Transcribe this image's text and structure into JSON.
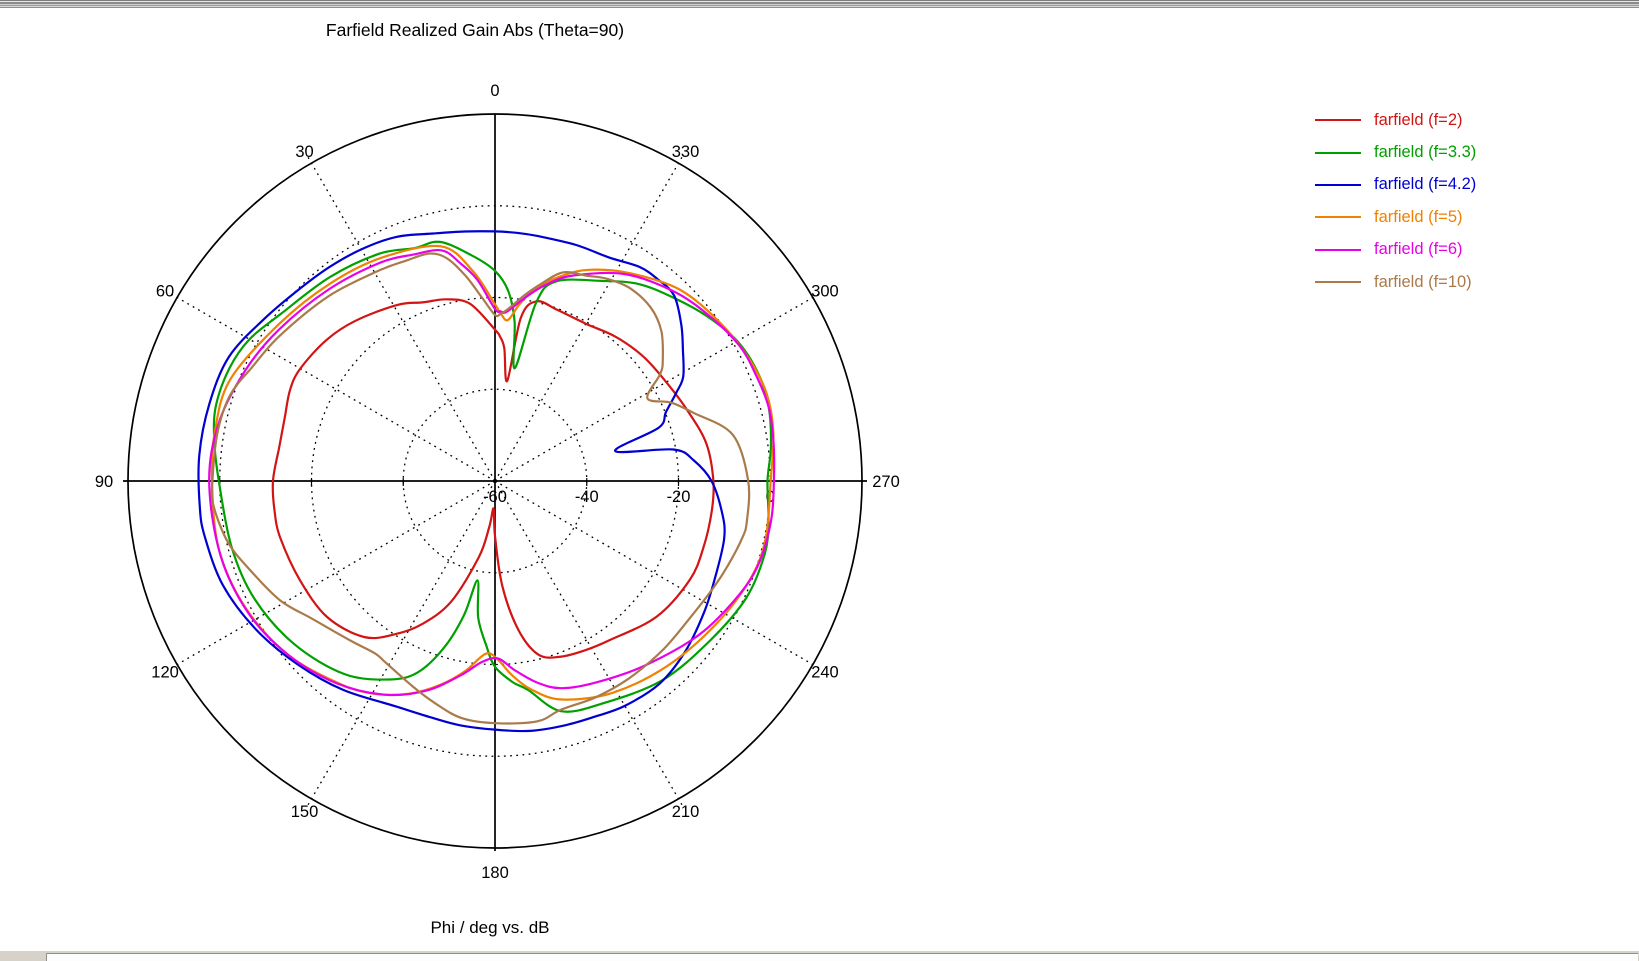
{
  "header": {
    "title": "Farfield Realized Gain Abs (Theta=90)"
  },
  "footer": {
    "axis_caption": "Phi / deg vs. dB"
  },
  "chart_data": {
    "type": "line",
    "subtype": "polar",
    "title": "Farfield Realized Gain Abs (Theta=90)",
    "xlabel": "Phi / deg",
    "ylabel": "dB",
    "angle_unit": "deg",
    "angle_zero_position": "top",
    "angle_direction": "counterclockwise",
    "angle_tick_labels": [
      "0",
      "30",
      "60",
      "90",
      "120",
      "150",
      "180",
      "210",
      "240",
      "270",
      "300",
      "330"
    ],
    "radial_axis": {
      "min": -60,
      "max": 20,
      "ring_step": 20,
      "tick_labels": [
        "-60",
        "-40",
        "-20",
        "0"
      ]
    },
    "grid": "dotted-rings-and-spokes",
    "legend_position": "right",
    "series": [
      {
        "name": "farfield (f=2)",
        "color": "#d21414",
        "points": [
          [
            0,
            -27
          ],
          [
            8,
            -21
          ],
          [
            15,
            -19
          ],
          [
            22,
            -18
          ],
          [
            29,
            -16.1
          ],
          [
            41,
            -13.7
          ],
          [
            50,
            -12.1
          ],
          [
            60,
            -11
          ],
          [
            66,
            -11.1
          ],
          [
            73,
            -12.1
          ],
          [
            81,
            -12.4
          ],
          [
            90,
            -11.6
          ],
          [
            98,
            -11.5
          ],
          [
            105,
            -11.6
          ],
          [
            117,
            -12.3
          ],
          [
            129,
            -12.9
          ],
          [
            140,
            -15.6
          ],
          [
            147,
            -20.2
          ],
          [
            153,
            -25
          ],
          [
            160,
            -32
          ],
          [
            168,
            -43
          ],
          [
            173,
            -50
          ],
          [
            177,
            -54
          ],
          [
            180,
            -48
          ],
          [
            184,
            -37
          ],
          [
            189,
            -27
          ],
          [
            194,
            -21
          ],
          [
            200,
            -19.2
          ],
          [
            208,
            -18.2
          ],
          [
            216,
            -17.2
          ],
          [
            230,
            -14
          ],
          [
            243,
            -12.4
          ],
          [
            252,
            -12.3
          ],
          [
            262,
            -12.3
          ],
          [
            270,
            -12.4
          ],
          [
            280,
            -13.2
          ],
          [
            290,
            -15.3
          ],
          [
            300,
            -16.9
          ],
          [
            310,
            -17.8
          ],
          [
            320,
            -19
          ],
          [
            330,
            -20.4
          ],
          [
            340,
            -20.3
          ],
          [
            347,
            -19.8
          ],
          [
            351,
            -24
          ],
          [
            353,
            -38
          ],
          [
            356,
            -31
          ],
          [
            358,
            -28.5
          ]
        ]
      },
      {
        "name": "farfield (f=3.3)",
        "color": "#00a000",
        "points": [
          [
            0,
            -14.2
          ],
          [
            6,
            -10.5
          ],
          [
            13,
            -6.5
          ],
          [
            19,
            -6.3
          ],
          [
            27,
            -4.4
          ],
          [
            39,
            -2.8
          ],
          [
            52,
            -0.8
          ],
          [
            60,
            1.8
          ],
          [
            67,
            2.9
          ],
          [
            75,
            3
          ],
          [
            82,
            1.8
          ],
          [
            90,
            0.2
          ],
          [
            104,
            -0.8
          ],
          [
            116,
            -1.6
          ],
          [
            129,
            -3.6
          ],
          [
            142,
            -6.6
          ],
          [
            152,
            -11
          ],
          [
            158,
            -15
          ],
          [
            163,
            -22
          ],
          [
            167,
            -30
          ],
          [
            170,
            -38
          ],
          [
            173,
            -30
          ],
          [
            177,
            -24
          ],
          [
            180,
            -19.5
          ],
          [
            185,
            -16
          ],
          [
            189,
            -13.9
          ],
          [
            196,
            -7.8
          ],
          [
            206,
            -6.1
          ],
          [
            220,
            -3.3
          ],
          [
            233,
            -1.7
          ],
          [
            245,
            0.4
          ],
          [
            255,
            0.9
          ],
          [
            262,
            0.2
          ],
          [
            270,
            -0.6
          ],
          [
            277,
            0.6
          ],
          [
            285,
            1.8
          ],
          [
            292,
            2
          ],
          [
            300,
            1
          ],
          [
            308,
            -1.5
          ],
          [
            316,
            -4.3
          ],
          [
            324,
            -6.9
          ],
          [
            332,
            -10.6
          ],
          [
            343,
            -14.5
          ],
          [
            347,
            -20
          ],
          [
            350,
            -35
          ],
          [
            353,
            -25
          ],
          [
            356,
            -18.5
          ]
        ]
      },
      {
        "name": "farfield (f=4.2)",
        "color": "#0000d2",
        "points": [
          [
            0,
            -5.6
          ],
          [
            7,
            -5.2
          ],
          [
            14,
            -4.4
          ],
          [
            22,
            -2.6
          ],
          [
            30,
            -1.7
          ],
          [
            38,
            -1
          ],
          [
            46,
            -0.2
          ],
          [
            55,
            1.5
          ],
          [
            65,
            4
          ],
          [
            75,
            4.5
          ],
          [
            85,
            4.7
          ],
          [
            95,
            4.6
          ],
          [
            101,
            4.4
          ],
          [
            111,
            3.5
          ],
          [
            122,
            1.3
          ],
          [
            133,
            -1.3
          ],
          [
            144,
            -3.7
          ],
          [
            156,
            -6.3
          ],
          [
            165,
            -6.6
          ],
          [
            172,
            -6.2
          ],
          [
            180,
            -5.8
          ],
          [
            188,
            -5
          ],
          [
            196,
            -4.6
          ],
          [
            203,
            -4.2
          ],
          [
            210,
            -3.4
          ],
          [
            219,
            -3.1
          ],
          [
            228,
            -4.3
          ],
          [
            238,
            -6.2
          ],
          [
            247,
            -7.7
          ],
          [
            256,
            -8.5
          ],
          [
            262,
            -10
          ],
          [
            270,
            -12.8
          ],
          [
            276,
            -16.5
          ],
          [
            280,
            -20.5
          ],
          [
            284,
            -33
          ],
          [
            288,
            -22.5
          ],
          [
            292,
            -19.8
          ],
          [
            296,
            -16
          ],
          [
            299,
            -13.1
          ],
          [
            305,
            -10
          ],
          [
            310,
            -7
          ],
          [
            316,
            -3.8
          ],
          [
            321,
            -3.5
          ],
          [
            326,
            -3.7
          ],
          [
            333,
            -5.3
          ],
          [
            341,
            -5.6
          ],
          [
            350,
            -5.8
          ],
          [
            355,
            -5.7
          ]
        ]
      },
      {
        "name": "farfield (f=5)",
        "color": "#ef8200",
        "points": [
          [
            0,
            -21.5
          ],
          [
            6,
            -14
          ],
          [
            13,
            -7.5
          ],
          [
            27,
            -5.4
          ],
          [
            40,
            -3.9
          ],
          [
            54,
            -1.8
          ],
          [
            69,
            1.8
          ],
          [
            80,
            2
          ],
          [
            90,
            1.7
          ],
          [
            104,
            2
          ],
          [
            117,
            1
          ],
          [
            130,
            -1.1
          ],
          [
            142,
            -4.2
          ],
          [
            150,
            -6.5
          ],
          [
            158,
            -10
          ],
          [
            165,
            -14
          ],
          [
            171,
            -18
          ],
          [
            177,
            -22.3
          ],
          [
            181,
            -21
          ],
          [
            185,
            -17.5
          ],
          [
            190,
            -13.8
          ],
          [
            197,
            -10.2
          ],
          [
            209,
            -7.2
          ],
          [
            223,
            -4.9
          ],
          [
            237,
            -2.6
          ],
          [
            249,
            -0.4
          ],
          [
            258,
            0.3
          ],
          [
            270,
            0.1
          ],
          [
            280,
            1.6
          ],
          [
            288,
            2.2
          ],
          [
            296,
            1.4
          ],
          [
            305,
            0
          ],
          [
            316,
            -2
          ],
          [
            327,
            -6
          ],
          [
            336,
            -9.6
          ],
          [
            342,
            -13
          ],
          [
            348,
            -17
          ],
          [
            352,
            -21
          ],
          [
            355.4,
            -24.8
          ],
          [
            358,
            -23.5
          ]
        ]
      },
      {
        "name": "farfield (f=6)",
        "color": "#e800e8",
        "points": [
          [
            0,
            -22.5
          ],
          [
            5,
            -16
          ],
          [
            9,
            -12
          ],
          [
            13,
            -8.4
          ],
          [
            20,
            -7.5
          ],
          [
            28,
            -6.2
          ],
          [
            41,
            -4.7
          ],
          [
            55,
            -2.5
          ],
          [
            66,
            -0.5
          ],
          [
            78,
            1.5
          ],
          [
            90,
            2.3
          ],
          [
            105,
            2
          ],
          [
            118,
            1
          ],
          [
            130,
            -1.1
          ],
          [
            142,
            -4
          ],
          [
            153,
            -7.7
          ],
          [
            162,
            -12
          ],
          [
            170,
            -17
          ],
          [
            176,
            -20.5
          ],
          [
            181,
            -21.3
          ],
          [
            186,
            -18.5
          ],
          [
            192,
            -15
          ],
          [
            198,
            -12.5
          ],
          [
            207,
            -10.8
          ],
          [
            219,
            -8.2
          ],
          [
            233,
            -4.3
          ],
          [
            245,
            -1.3
          ],
          [
            253,
            0.3
          ],
          [
            262,
            0.8
          ],
          [
            270,
            0.8
          ],
          [
            278,
            1.3
          ],
          [
            285,
            1.8
          ],
          [
            292,
            1.4
          ],
          [
            299,
            0.9
          ],
          [
            308,
            -1.1
          ],
          [
            317,
            -3.3
          ],
          [
            328,
            -6.8
          ],
          [
            339,
            -12
          ],
          [
            345,
            -15.5
          ],
          [
            350,
            -19
          ],
          [
            356,
            -23
          ],
          [
            358,
            -23
          ]
        ]
      },
      {
        "name": "farfield (f=10)",
        "color": "#aa7a4a",
        "points": [
          [
            0,
            -23.8
          ],
          [
            4,
            -20
          ],
          [
            8,
            -15
          ],
          [
            12,
            -10.5
          ],
          [
            16,
            -8.4
          ],
          [
            22,
            -8.2
          ],
          [
            29,
            -7.6
          ],
          [
            42,
            -5.8
          ],
          [
            56,
            -3.4
          ],
          [
            65,
            -1.5
          ],
          [
            72,
            0.7
          ],
          [
            80,
            1.4
          ],
          [
            90,
            1.6
          ],
          [
            95,
            1.6
          ],
          [
            103,
            -0.3
          ],
          [
            110,
            -3.2
          ],
          [
            119,
            -6.4
          ],
          [
            127,
            -10.1
          ],
          [
            138,
            -13.1
          ],
          [
            145,
            -14.2
          ],
          [
            149,
            -13.8
          ],
          [
            158,
            -11.8
          ],
          [
            165,
            -9.8
          ],
          [
            172,
            -7.8
          ],
          [
            180,
            -7.2
          ],
          [
            190,
            -6.8
          ],
          [
            196,
            -8.1
          ],
          [
            205,
            -8
          ],
          [
            214,
            -8
          ],
          [
            225,
            -8.1
          ],
          [
            236,
            -8
          ],
          [
            244,
            -7
          ],
          [
            250,
            -6
          ],
          [
            257,
            -4.7
          ],
          [
            261,
            -4.4
          ],
          [
            270,
            -4.8
          ],
          [
            281,
            -7.2
          ],
          [
            289,
            -14.3
          ],
          [
            294,
            -18
          ],
          [
            298.5,
            -22.2
          ],
          [
            303,
            -17
          ],
          [
            306,
            -14.8
          ],
          [
            312,
            -11.2
          ],
          [
            318,
            -9.2
          ],
          [
            325,
            -8.7
          ],
          [
            331,
            -9.6
          ],
          [
            336,
            -11
          ],
          [
            342,
            -12.2
          ],
          [
            347,
            -16
          ],
          [
            351,
            -19
          ],
          [
            355,
            -22
          ],
          [
            358,
            -23.5
          ]
        ]
      }
    ]
  }
}
